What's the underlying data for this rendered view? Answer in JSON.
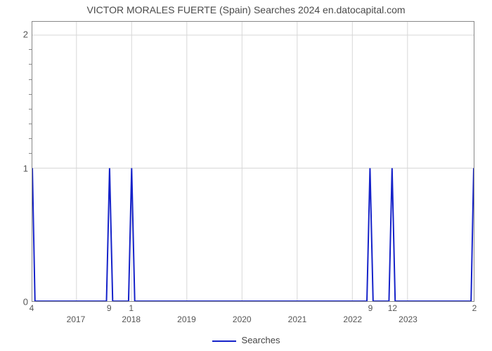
{
  "title": "VICTOR MORALES FUERTE (Spain) Searches 2024 en.datocapital.com",
  "legend_label": "Searches",
  "chart": {
    "type": "line",
    "line_color": "#1522c9",
    "line_width": 2,
    "background_color": "#ffffff",
    "grid_color": "#d7d7d7",
    "grid_width": 1,
    "border_color": "#888888",
    "xlim": [
      0,
      100
    ],
    "ylim": [
      0,
      2.1
    ],
    "ytick_labels": [
      "0",
      "1",
      "2"
    ],
    "ytick_values": [
      0,
      1,
      2
    ],
    "minor_yticks": 8,
    "xtick_labels": [
      "2017",
      "2018",
      "2019",
      "2020",
      "2021",
      "2022",
      "2023"
    ],
    "xtick_positions": [
      10,
      22.5,
      35,
      47.5,
      60,
      72.5,
      85
    ],
    "vgrid_positions": [
      10,
      22.5,
      35,
      47.5,
      60,
      72.5,
      85
    ],
    "data_labels": [
      {
        "text": "4",
        "x": 0
      },
      {
        "text": "9",
        "x": 17.5
      },
      {
        "text": "1",
        "x": 22.5
      },
      {
        "text": "9",
        "x": 76.5
      },
      {
        "text": "12",
        "x": 81.5
      },
      {
        "text": "2",
        "x": 100
      }
    ],
    "series": [
      {
        "x": 0,
        "y": 1.0
      },
      {
        "x": 0.6,
        "y": 0.0
      },
      {
        "x": 16.8,
        "y": 0.0
      },
      {
        "x": 17.5,
        "y": 1.0
      },
      {
        "x": 18.2,
        "y": 0.0
      },
      {
        "x": 21.8,
        "y": 0.0
      },
      {
        "x": 22.5,
        "y": 1.0
      },
      {
        "x": 23.2,
        "y": 0.0
      },
      {
        "x": 75.8,
        "y": 0.0
      },
      {
        "x": 76.5,
        "y": 1.0
      },
      {
        "x": 77.2,
        "y": 0.0
      },
      {
        "x": 80.8,
        "y": 0.0
      },
      {
        "x": 81.5,
        "y": 1.0
      },
      {
        "x": 82.2,
        "y": 0.0
      },
      {
        "x": 99.4,
        "y": 0.0
      },
      {
        "x": 100,
        "y": 1.0
      }
    ]
  }
}
